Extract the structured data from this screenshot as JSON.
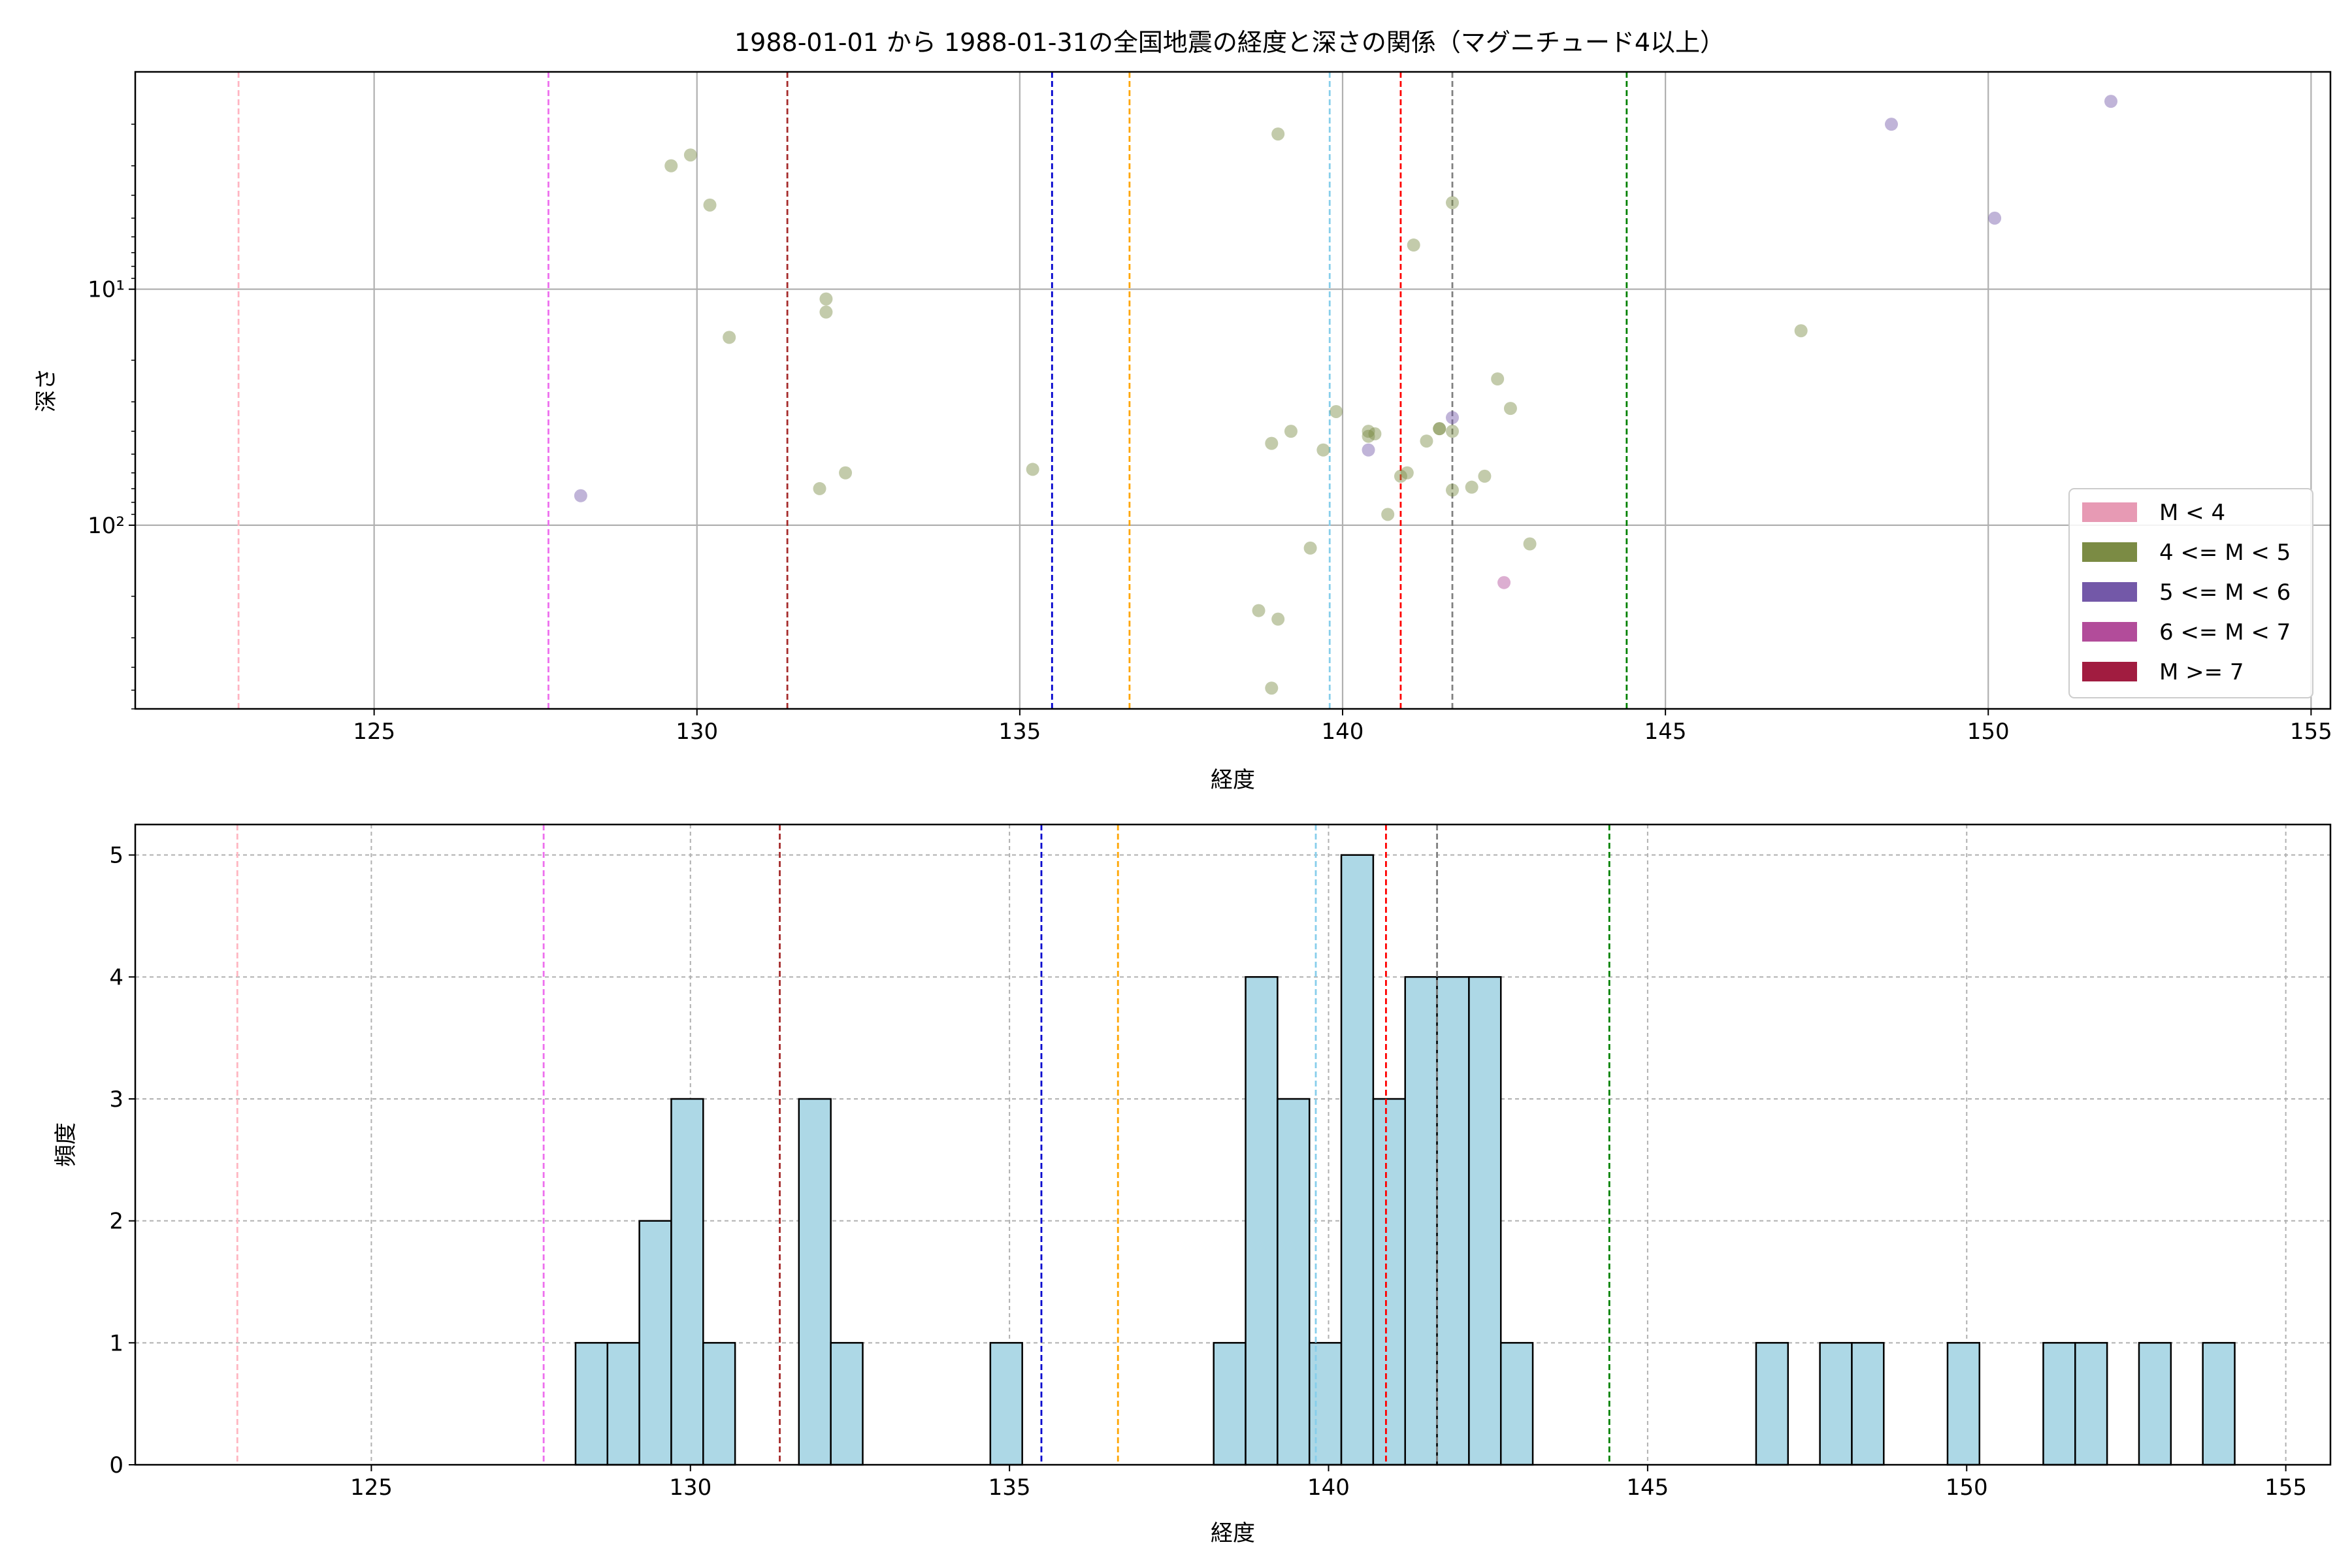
{
  "chart_data": [
    {
      "type": "scatter",
      "title": "1988-01-01 から 1988-01-31の全国地震の経度と深さの関係（マグニチュード4以上）",
      "xlabel": "経度",
      "ylabel": "深さ",
      "xlim": [
        121.3,
        155.3
      ],
      "ylim": [
        600,
        1.2
      ],
      "yscale": "log",
      "y_inverted": true,
      "x_ticks": [
        "125",
        "130",
        "135",
        "140",
        "145",
        "150",
        "155"
      ],
      "y_ticks": [
        "10¹",
        "10²"
      ],
      "grid": true,
      "legend_position": "lower-right",
      "legend": [
        {
          "label": "M < 4",
          "color": "#e79ab4"
        },
        {
          "label": "4 <= M < 5",
          "color": "#7b8b44"
        },
        {
          "label": "5 <= M < 6",
          "color": "#7358a8"
        },
        {
          "label": "6 <= M < 7",
          "color": "#b24c9a"
        },
        {
          "label": "M >= 7",
          "color": "#a11c40"
        }
      ],
      "vertical_lines": [
        {
          "x": 122.9,
          "color": "#ffb6c1"
        },
        {
          "x": 127.7,
          "color": "#ee6fee"
        },
        {
          "x": 131.4,
          "color": "#a52a2a"
        },
        {
          "x": 135.5,
          "color": "#0000cd"
        },
        {
          "x": 136.7,
          "color": "#ffa500"
        },
        {
          "x": 139.8,
          "color": "#87ceeb"
        },
        {
          "x": 140.9,
          "color": "#ff0000"
        },
        {
          "x": 141.7,
          "color": "#808080"
        },
        {
          "x": 144.4,
          "color": "#008000"
        }
      ],
      "series": [
        {
          "category": "4 <= M < 5",
          "color": "#7b8b44",
          "points": [
            [
              129.6,
              3
            ],
            [
              129.9,
              2.7
            ],
            [
              130.2,
              4.4
            ],
            [
              130.5,
              16
            ],
            [
              132.0,
              11
            ],
            [
              132.0,
              12.5
            ],
            [
              131.9,
              70
            ],
            [
              132.3,
              60
            ],
            [
              135.2,
              58
            ],
            [
              138.7,
              230
            ],
            [
              138.9,
              45
            ],
            [
              138.9,
              490
            ],
            [
              139.0,
              2.2
            ],
            [
              139.0,
              250
            ],
            [
              139.2,
              40
            ],
            [
              139.5,
              125
            ],
            [
              139.7,
              48
            ],
            [
              139.9,
              33
            ],
            [
              140.4,
              42
            ],
            [
              140.4,
              40
            ],
            [
              140.5,
              41
            ],
            [
              140.7,
              90
            ],
            [
              140.9,
              62
            ],
            [
              141.0,
              60
            ],
            [
              141.1,
              6.5
            ],
            [
              141.3,
              44
            ],
            [
              141.5,
              39
            ],
            [
              141.5,
              39
            ],
            [
              141.7,
              4.3
            ],
            [
              141.7,
              40
            ],
            [
              141.7,
              71
            ],
            [
              142.0,
              69
            ],
            [
              142.2,
              62
            ],
            [
              142.4,
              24
            ],
            [
              142.6,
              32
            ],
            [
              142.9,
              120
            ],
            [
              147.1,
              15
            ]
          ]
        },
        {
          "category": "5 <= M < 6",
          "color": "#7358a8",
          "points": [
            [
              128.2,
              75
            ],
            [
              140.4,
              48
            ],
            [
              141.7,
              35
            ],
            [
              148.5,
              2
            ],
            [
              150.1,
              5
            ],
            [
              151.9,
              1.6
            ]
          ]
        },
        {
          "category": "6 <= M < 7",
          "color": "#b24c9a",
          "points": [
            [
              142.5,
              175
            ]
          ]
        }
      ]
    },
    {
      "type": "bar",
      "subtype": "histogram",
      "xlabel": "経度",
      "ylabel": "頻度",
      "xlim": [
        121.3,
        155.7
      ],
      "ylim": [
        0,
        5.25
      ],
      "x_ticks": [
        "125",
        "130",
        "135",
        "140",
        "145",
        "150",
        "155"
      ],
      "y_ticks": [
        "0",
        "1",
        "2",
        "3",
        "4",
        "5"
      ],
      "grid": true,
      "bar_color": "#add8e6",
      "bar_edge_color": "#000000",
      "bin_width": 0.5,
      "bins": [
        {
          "start": 128.2,
          "count": 1
        },
        {
          "start": 128.7,
          "count": 1
        },
        {
          "start": 129.2,
          "count": 2
        },
        {
          "start": 129.7,
          "count": 3
        },
        {
          "start": 130.2,
          "count": 1
        },
        {
          "start": 131.7,
          "count": 3
        },
        {
          "start": 132.2,
          "count": 1
        },
        {
          "start": 134.7,
          "count": 1
        },
        {
          "start": 138.2,
          "count": 1
        },
        {
          "start": 138.7,
          "count": 4
        },
        {
          "start": 139.2,
          "count": 3
        },
        {
          "start": 139.7,
          "count": 1
        },
        {
          "start": 140.2,
          "count": 5
        },
        {
          "start": 140.7,
          "count": 3
        },
        {
          "start": 141.2,
          "count": 4
        },
        {
          "start": 141.7,
          "count": 4
        },
        {
          "start": 142.2,
          "count": 4
        },
        {
          "start": 142.7,
          "count": 1
        },
        {
          "start": 146.7,
          "count": 1
        },
        {
          "start": 147.7,
          "count": 1
        },
        {
          "start": 148.2,
          "count": 1
        },
        {
          "start": 149.7,
          "count": 1
        },
        {
          "start": 151.2,
          "count": 1
        },
        {
          "start": 151.7,
          "count": 1
        },
        {
          "start": 152.7,
          "count": 1
        },
        {
          "start": 153.7,
          "count": 1
        }
      ],
      "vertical_lines": [
        {
          "x": 122.9,
          "color": "#ffb6c1"
        },
        {
          "x": 127.7,
          "color": "#ee6fee"
        },
        {
          "x": 131.4,
          "color": "#a52a2a"
        },
        {
          "x": 135.5,
          "color": "#0000cd"
        },
        {
          "x": 136.7,
          "color": "#ffa500"
        },
        {
          "x": 139.8,
          "color": "#87ceeb"
        },
        {
          "x": 140.9,
          "color": "#ff0000"
        },
        {
          "x": 141.7,
          "color": "#808080"
        },
        {
          "x": 144.4,
          "color": "#008000"
        }
      ]
    }
  ]
}
